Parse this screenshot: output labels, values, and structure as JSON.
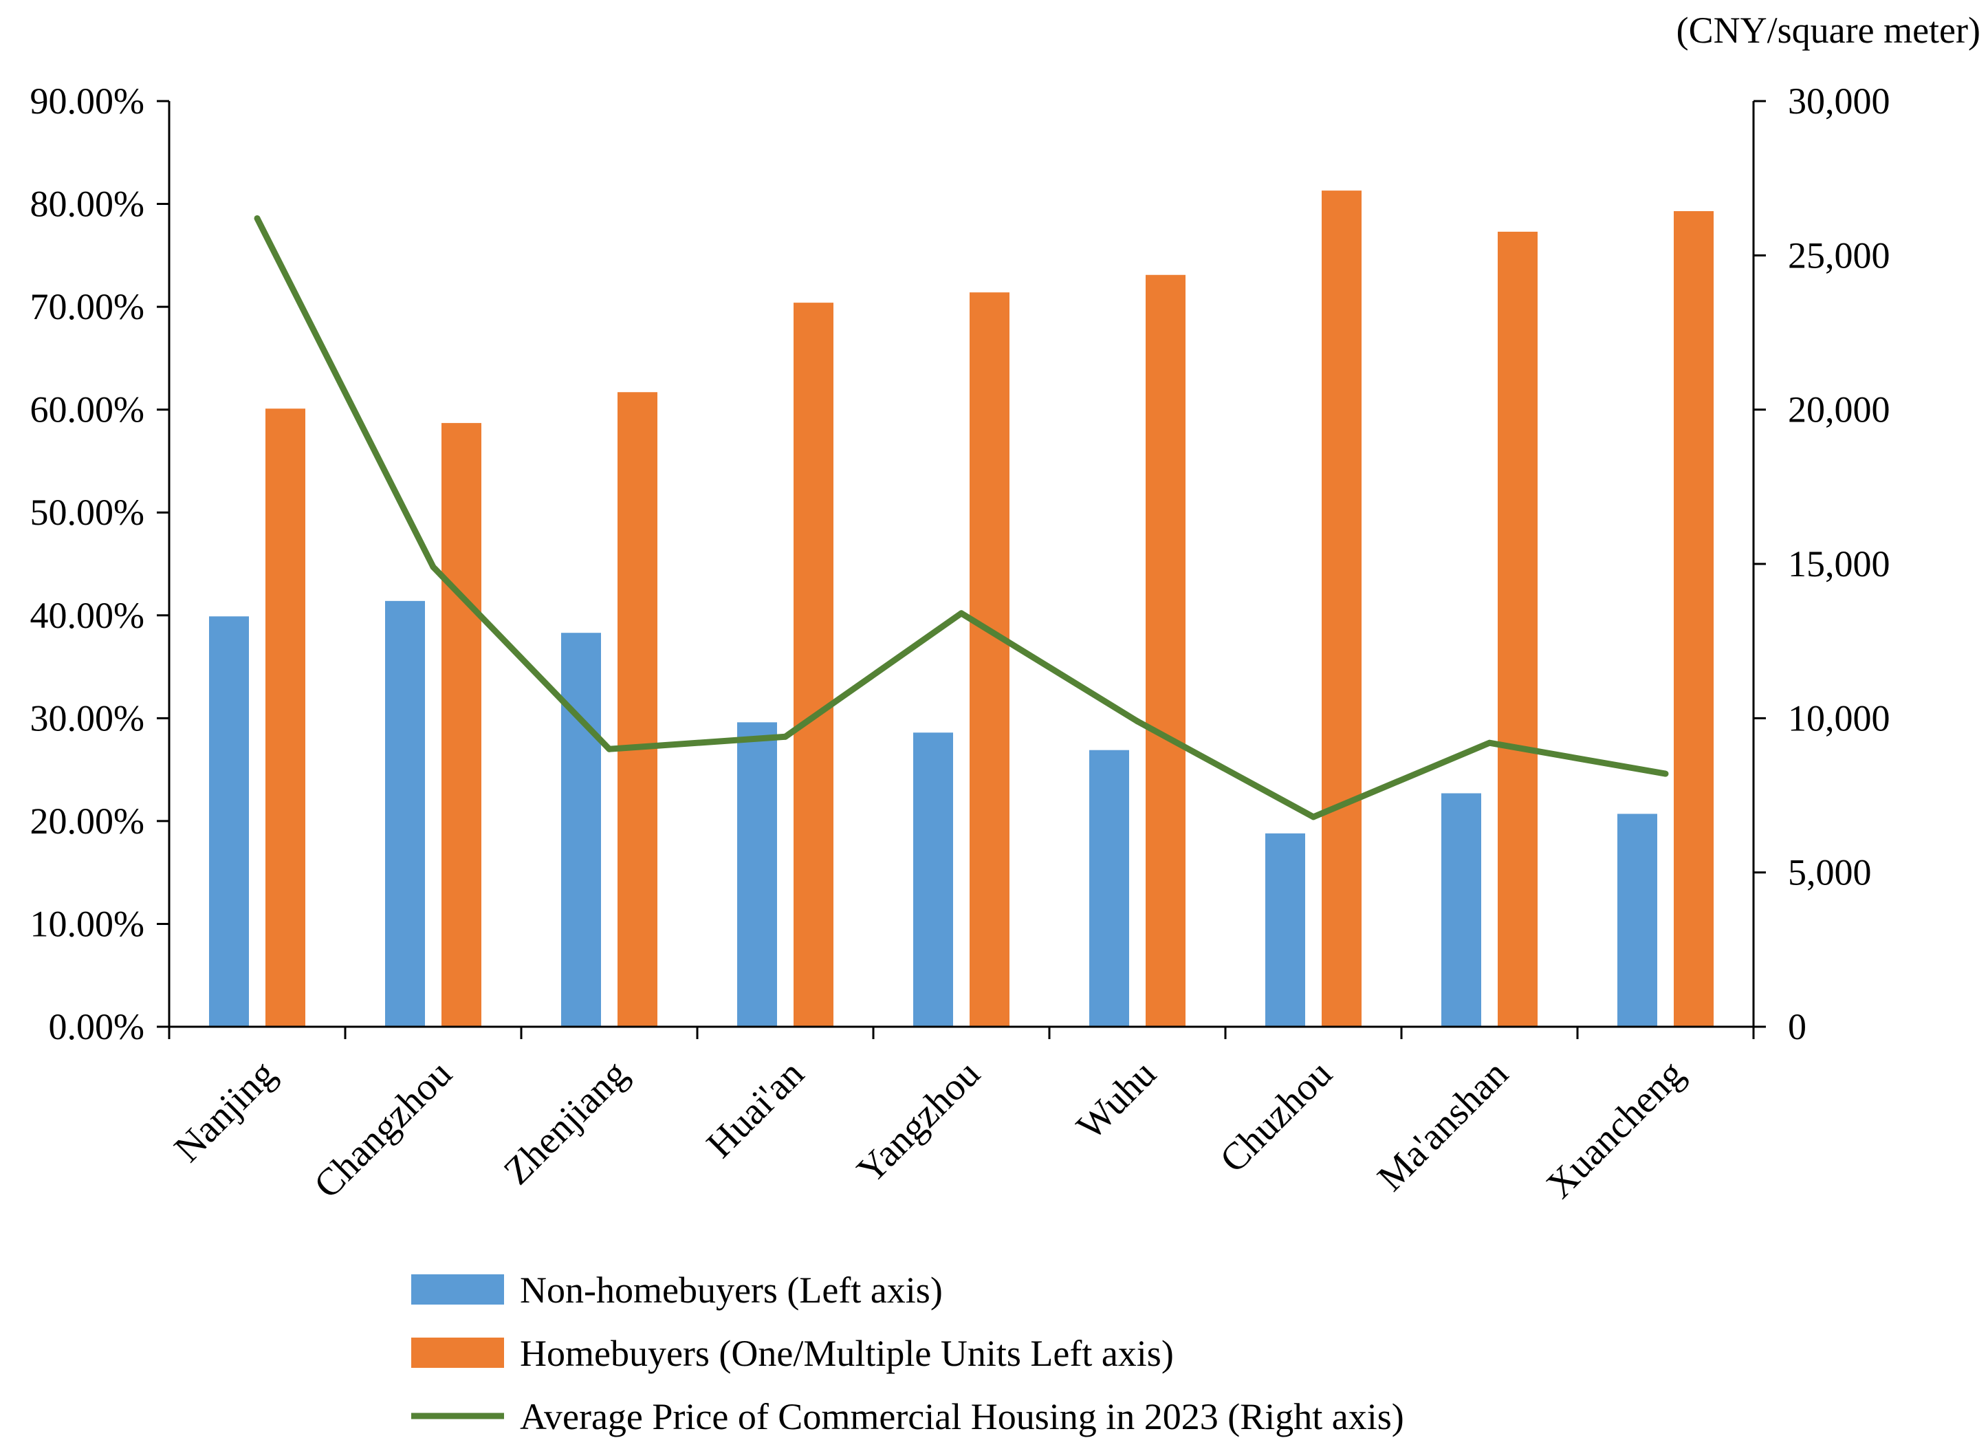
{
  "chart_data": {
    "type": "bar+line",
    "categories": [
      "Nanjing",
      "Changzhou",
      "Zhenjiang",
      "Huai'an",
      "Yangzhou",
      "Wuhu",
      "Chuzhou",
      "Ma'anshan",
      "Xuancheng"
    ],
    "series": [
      {
        "name": "Non-homebuyers (Left axis)",
        "type": "bar",
        "axis": "left",
        "color": "#5b9bd5",
        "values": [
          39.9,
          41.4,
          38.3,
          29.6,
          28.6,
          26.9,
          18.8,
          22.7,
          20.7
        ]
      },
      {
        "name": "Homebuyers (One/Multiple Units  Left axis)",
        "type": "bar",
        "axis": "left",
        "color": "#ed7d31",
        "values": [
          60.1,
          58.7,
          61.7,
          70.4,
          71.4,
          73.1,
          81.3,
          77.3,
          79.3
        ]
      },
      {
        "name": "Average Price of Commercial Housing in 2023 (Right axis)",
        "type": "line",
        "axis": "right",
        "color": "#548235",
        "values": [
          26200,
          14900,
          9000,
          9400,
          13400,
          9900,
          6800,
          9200,
          8200
        ]
      }
    ],
    "left_axis": {
      "ylim": [
        0,
        90
      ],
      "ticks": [
        0,
        10,
        20,
        30,
        40,
        50,
        60,
        70,
        80,
        90
      ],
      "tick_labels": [
        "0.00%",
        "10.00%",
        "20.00%",
        "30.00%",
        "40.00%",
        "50.00%",
        "60.00%",
        "70.00%",
        "80.00%",
        "90.00%"
      ]
    },
    "right_axis": {
      "ylim": [
        0,
        30000
      ],
      "ticks": [
        0,
        5000,
        10000,
        15000,
        20000,
        25000,
        30000
      ],
      "tick_labels": [
        "0",
        "5,000",
        "10,000",
        "15,000",
        "20,000",
        "25,000",
        "30,000"
      ],
      "unit_label": "(CNY/square meter)"
    },
    "legend_position": "bottom",
    "grid": false
  }
}
